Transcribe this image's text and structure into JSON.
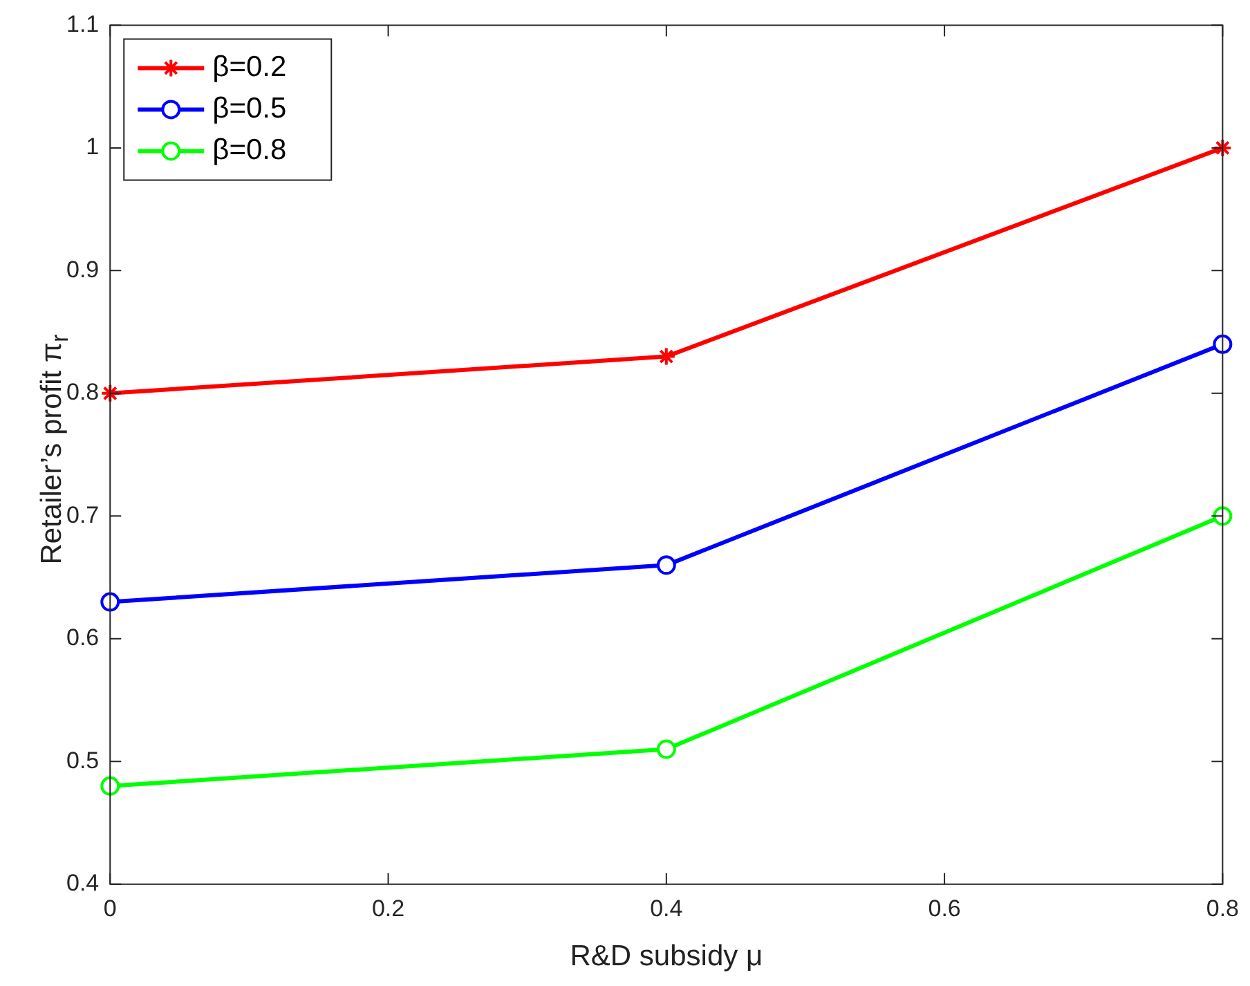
{
  "chart_data": {
    "type": "line",
    "xlabel": "R&D subsidy μ",
    "ylabel": "Retailer’s profit π$_{r}$",
    "x": [
      0,
      0.4,
      0.8
    ],
    "series": [
      {
        "name": "β=0.2",
        "color": "#ff0000",
        "marker": "cross",
        "values": [
          0.8,
          0.83,
          1.0
        ]
      },
      {
        "name": "β=0.5",
        "color": "#0000ff",
        "marker": "circle",
        "values": [
          0.63,
          0.66,
          0.84
        ]
      },
      {
        "name": "β=0.8",
        "color": "#00ff00",
        "marker": "circle",
        "values": [
          0.48,
          0.51,
          0.7
        ]
      }
    ],
    "xlim": [
      0,
      0.8
    ],
    "xticks": [
      0,
      0.2,
      0.4,
      0.6,
      0.8
    ],
    "ylim": [
      0.4,
      1.1
    ],
    "yticks": [
      0.4,
      0.5,
      0.6,
      0.7,
      0.8,
      0.9,
      1,
      1.1
    ],
    "grid": false,
    "legend": "top left",
    "line_style": "solid"
  }
}
